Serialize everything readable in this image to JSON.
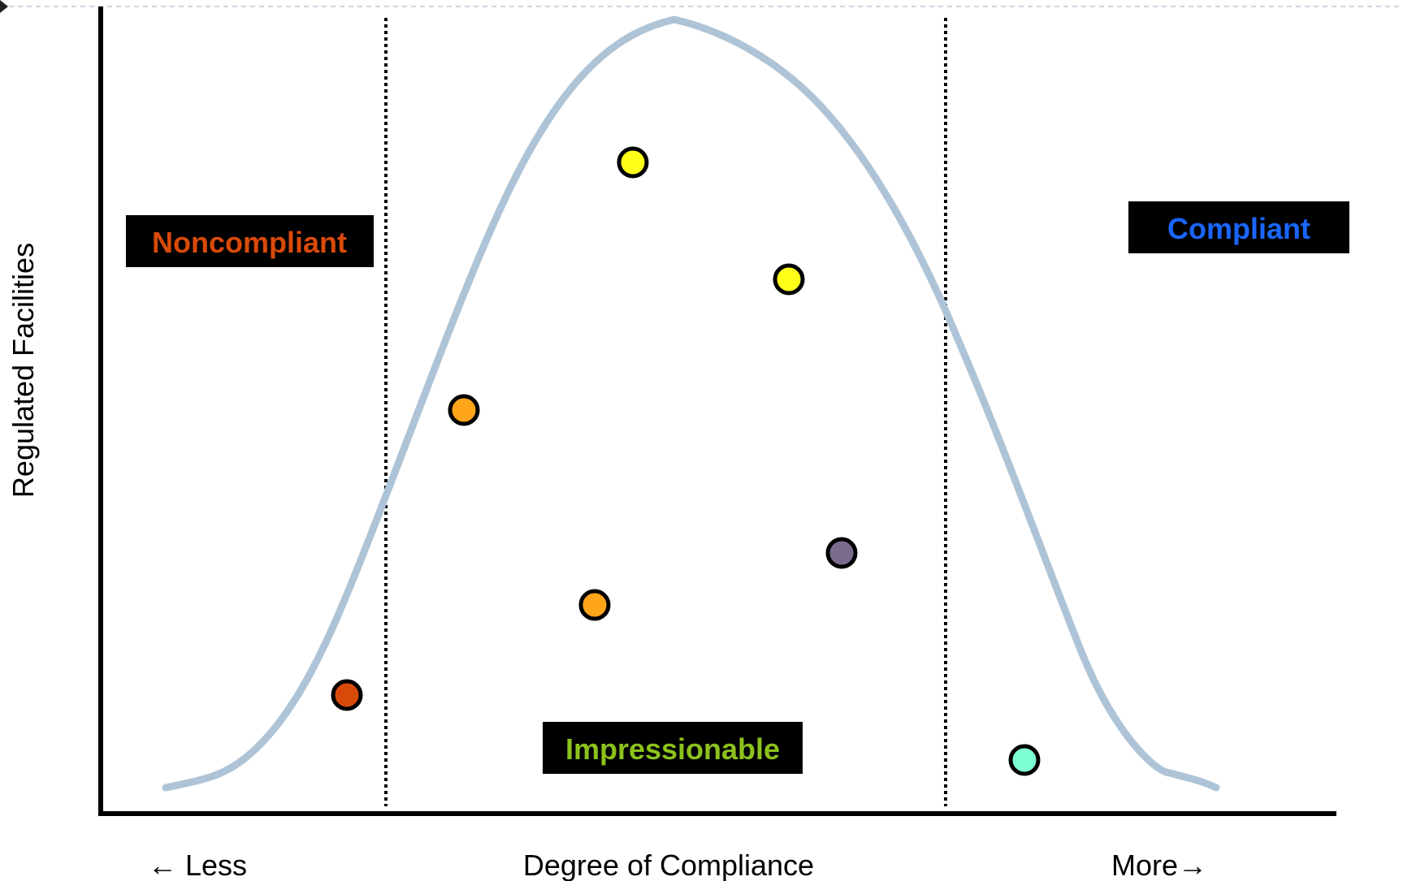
{
  "diagram": {
    "y_axis_label": "Regulated Facilities",
    "x_axis_label": "Degree of Compliance",
    "x_left_label": "← Less",
    "x_right_label": "More→",
    "zones": {
      "noncompliant": {
        "label": "Noncompliant",
        "color": "#d94a0a"
      },
      "impressionable": {
        "label": "Impressionable",
        "color": "#8cc21c"
      },
      "compliant": {
        "label": "Compliant",
        "color": "#1a66ff"
      }
    },
    "curve_color": "#aec4d6",
    "facility_markers": [
      {
        "zone": "noncompliant",
        "color": "#d94a0a"
      },
      {
        "zone": "impressionable",
        "color": "#ffa51a"
      },
      {
        "zone": "impressionable",
        "color": "#ffa51a"
      },
      {
        "zone": "impressionable",
        "color": "#ffff1a"
      },
      {
        "zone": "impressionable",
        "color": "#ffff1a"
      },
      {
        "zone": "impressionable",
        "color": "#7a6a8e"
      },
      {
        "zone": "compliant",
        "color": "#7fffd4"
      }
    ]
  }
}
